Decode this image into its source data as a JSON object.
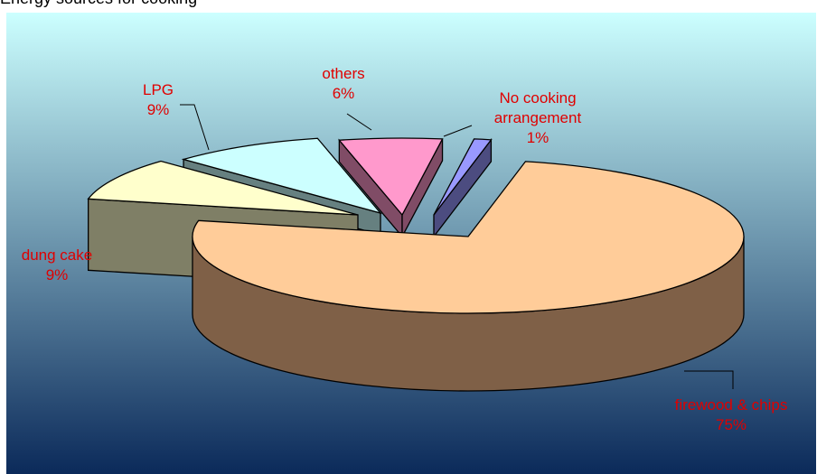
{
  "title": "Energy sources for cooking",
  "chart_data": {
    "type": "pie",
    "title": "Energy sources for cooking",
    "style": "3d-exploded",
    "slices": [
      {
        "label": "firewood & chips",
        "label_lines": [
          "firewood & chips"
        ],
        "pct_text": "75%",
        "value": 75,
        "top_color": "#ffcc99",
        "side_color": "#7f6047",
        "label_color": "#e00000"
      },
      {
        "label": "dung cake",
        "label_lines": [
          "dung cake"
        ],
        "pct_text": "9%",
        "value": 9,
        "top_color": "#ffffcc",
        "side_color": "#7f7f66",
        "label_color": "#e00000"
      },
      {
        "label": "LPG",
        "label_lines": [
          "LPG"
        ],
        "pct_text": "9%",
        "value": 9,
        "top_color": "#ccffff",
        "side_color": "#668080",
        "label_color": "#e00000"
      },
      {
        "label": "others",
        "label_lines": [
          "others"
        ],
        "pct_text": "6%",
        "value": 6,
        "top_color": "#ff99cc",
        "side_color": "#804c66",
        "label_color": "#e00000"
      },
      {
        "label": "No cooking arrangement",
        "label_lines": [
          "No cooking",
          "arrangement"
        ],
        "pct_text": "1%",
        "value": 1,
        "top_color": "#9999ff",
        "side_color": "#4c4c80",
        "label_color": "#e00000"
      }
    ],
    "background": {
      "top": "#ccffff",
      "bottom": "#0b2a5a"
    },
    "legend": "none"
  }
}
